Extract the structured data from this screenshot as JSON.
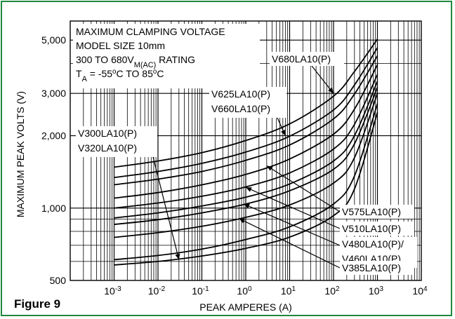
{
  "figure_label": "Figure 9",
  "chart_data": {
    "type": "line",
    "title_lines": [
      "MAXIMUM CLAMPING VOLTAGE",
      "MODEL SIZE 10mm",
      "300 TO 680V_M(AC) RATING",
      "T_A = -55°C TO 85°C"
    ],
    "xlabel": "PEAK AMPERES (A)",
    "ylabel": "MAXIMUM PEAK VOLTS (V)",
    "xscale": "log",
    "yscale": "log",
    "xlim": [
      0.0001,
      10000
    ],
    "ylim": [
      500,
      6000
    ],
    "x_ticks": [
      "10-3",
      "10-2",
      "10-1",
      "100",
      "101",
      "102",
      "103",
      "104"
    ],
    "y_ticks": [
      "500",
      "1,000",
      "2,000",
      "3,000",
      "5,000"
    ],
    "grid": true,
    "series": [
      {
        "name": "V300LA10(P)",
        "points": [
          [
            0.001,
            580
          ],
          [
            0.01,
            600
          ],
          [
            0.1,
            632
          ],
          [
            1,
            680
          ],
          [
            10,
            757
          ],
          [
            100,
            930
          ],
          [
            300,
            1200
          ],
          [
            1000,
            2500
          ]
        ]
      },
      {
        "name": "V320LA10(P)",
        "points": [
          [
            0.001,
            610
          ],
          [
            0.01,
            635
          ],
          [
            0.1,
            675
          ],
          [
            1,
            740
          ],
          [
            10,
            835
          ],
          [
            100,
            1040
          ],
          [
            300,
            1360
          ],
          [
            1000,
            2720
          ]
        ]
      },
      {
        "name": "V385LA10(P)",
        "points": [
          [
            0.001,
            755
          ],
          [
            0.01,
            790
          ],
          [
            0.1,
            840
          ],
          [
            1,
            915
          ],
          [
            10,
            1030
          ],
          [
            100,
            1270
          ],
          [
            300,
            1620
          ],
          [
            1000,
            3000
          ]
        ]
      },
      {
        "name": "V460LA10(P)",
        "points": [
          [
            0.001,
            855
          ],
          [
            0.01,
            895
          ],
          [
            0.1,
            955
          ],
          [
            1,
            1040
          ],
          [
            10,
            1180
          ],
          [
            100,
            1450
          ],
          [
            300,
            1850
          ],
          [
            1000,
            3180
          ]
        ]
      },
      {
        "name": "V480LA10(P)",
        "points": [
          [
            0.001,
            910
          ],
          [
            0.01,
            955
          ],
          [
            0.1,
            1020
          ],
          [
            1,
            1110
          ],
          [
            10,
            1260
          ],
          [
            100,
            1570
          ],
          [
            300,
            2000
          ],
          [
            1000,
            3370
          ]
        ]
      },
      {
        "name": "V510LA10(P)",
        "points": [
          [
            0.001,
            1000
          ],
          [
            0.01,
            1050
          ],
          [
            0.1,
            1120
          ],
          [
            1,
            1225
          ],
          [
            10,
            1400
          ],
          [
            100,
            1760
          ],
          [
            300,
            2230
          ],
          [
            1000,
            3600
          ]
        ]
      },
      {
        "name": "V575LA10(P)",
        "points": [
          [
            0.001,
            1100
          ],
          [
            0.01,
            1160
          ],
          [
            0.1,
            1250
          ],
          [
            1,
            1380
          ],
          [
            10,
            1600
          ],
          [
            100,
            2030
          ],
          [
            300,
            2580
          ],
          [
            1000,
            3950
          ]
        ]
      },
      {
        "name": "V625LA10(P)",
        "points": [
          [
            0.001,
            1250
          ],
          [
            0.01,
            1320
          ],
          [
            0.1,
            1420
          ],
          [
            1,
            1580
          ],
          [
            10,
            1830
          ],
          [
            100,
            2350
          ],
          [
            300,
            2980
          ],
          [
            1000,
            4300
          ]
        ]
      },
      {
        "name": "V660LA10(P)",
        "points": [
          [
            0.001,
            1340
          ],
          [
            0.01,
            1420
          ],
          [
            0.1,
            1535
          ],
          [
            1,
            1710
          ],
          [
            10,
            1990
          ],
          [
            100,
            2560
          ],
          [
            300,
            3250
          ],
          [
            1000,
            4650
          ]
        ]
      },
      {
        "name": "V680LA10(P)",
        "points": [
          [
            0.001,
            1480
          ],
          [
            0.01,
            1570
          ],
          [
            0.1,
            1700
          ],
          [
            1,
            1910
          ],
          [
            10,
            2240
          ],
          [
            100,
            2920
          ],
          [
            300,
            3700
          ],
          [
            1000,
            5050
          ]
        ]
      }
    ],
    "curve_labels": [
      {
        "lines": [
          "V680LA10(P)"
        ],
        "target": [
          100,
          3000
        ]
      },
      {
        "lines": [
          "V625LA10(P)",
          "V660LA10(P)"
        ],
        "target": [
          8,
          2000
        ]
      },
      {
        "lines": [
          "V300LA10(P)",
          "V320LA10(P)"
        ],
        "target": [
          0.03,
          610
        ]
      },
      {
        "lines": [
          "V575LA10(P)"
        ],
        "target": [
          3,
          1500
        ]
      },
      {
        "lines": [
          "V510LA10(P)"
        ],
        "target": [
          1,
          1220
        ]
      },
      {
        "lines": [
          "V480LA10(P)/",
          "V460LA10(P)"
        ],
        "target": [
          0.9,
          1040
        ]
      },
      {
        "lines": [
          "V385LA10(P)"
        ],
        "target": [
          0.7,
          905
        ]
      }
    ]
  }
}
